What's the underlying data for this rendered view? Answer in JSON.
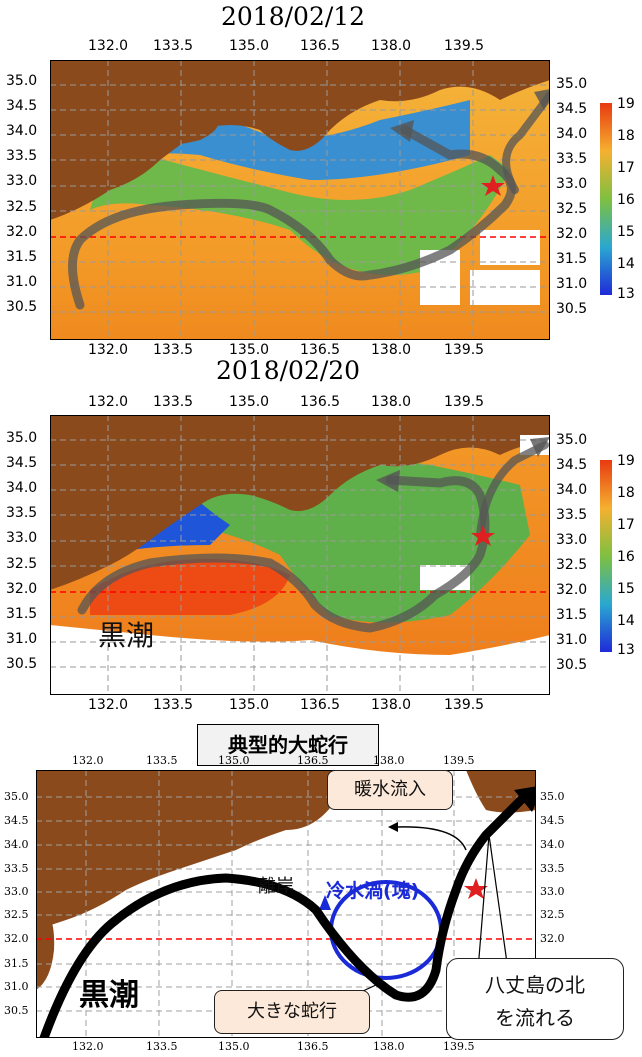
{
  "panel1": {
    "title": "2018/02/12",
    "lon_ticks": [
      "132.0",
      "133.5",
      "135.0",
      "136.5",
      "138.0",
      "139.5"
    ],
    "lat_ticks": [
      "35.0",
      "34.5",
      "34.0",
      "33.5",
      "33.0",
      "32.5",
      "32.0",
      "31.5",
      "31.0",
      "30.5"
    ],
    "colorbar_ticks": [
      "19",
      "18",
      "17",
      "16",
      "15",
      "14",
      "13"
    ]
  },
  "panel2": {
    "title": "2018/02/20",
    "lon_ticks": [
      "132.0",
      "133.5",
      "135.0",
      "136.5",
      "138.0",
      "139.5"
    ],
    "lat_ticks": [
      "35.0",
      "34.5",
      "34.0",
      "33.5",
      "33.0",
      "32.5",
      "32.0",
      "31.5",
      "31.0",
      "30.5"
    ],
    "colorbar_ticks": [
      "19",
      "18",
      "17",
      "16",
      "15",
      "14",
      "13"
    ],
    "kuroshio_label": "黒潮"
  },
  "panel3": {
    "title": "典型的大蛇行",
    "lon_ticks": [
      "132.0",
      "133.5",
      "135.0",
      "136.5",
      "138.0",
      "139.5"
    ],
    "lat_ticks": [
      "35.0",
      "34.5",
      "34.0",
      "33.5",
      "33.0",
      "32.5",
      "32.0",
      "31.5",
      "31.0",
      "30.5"
    ],
    "labels": {
      "warm_inflow": "暖水流入",
      "cold_eddy": "冷水渦(塊)",
      "offshore": "離岸",
      "kuroshio": "黒潮",
      "large_meander": "大きな蛇行",
      "hachijo_line1": "八丈島の北",
      "hachijo_line2": "を流れる"
    }
  },
  "colors": {
    "land": "#8b4a1c",
    "sea_warm": "#f08a1e",
    "sea_cool": "#5fb04a",
    "sea_cold": "#1f55d8",
    "kuroshio_arrow": "#555555",
    "eddy": "#1a2ad8",
    "reference_line": "#ff0000",
    "star": "#e02020"
  }
}
